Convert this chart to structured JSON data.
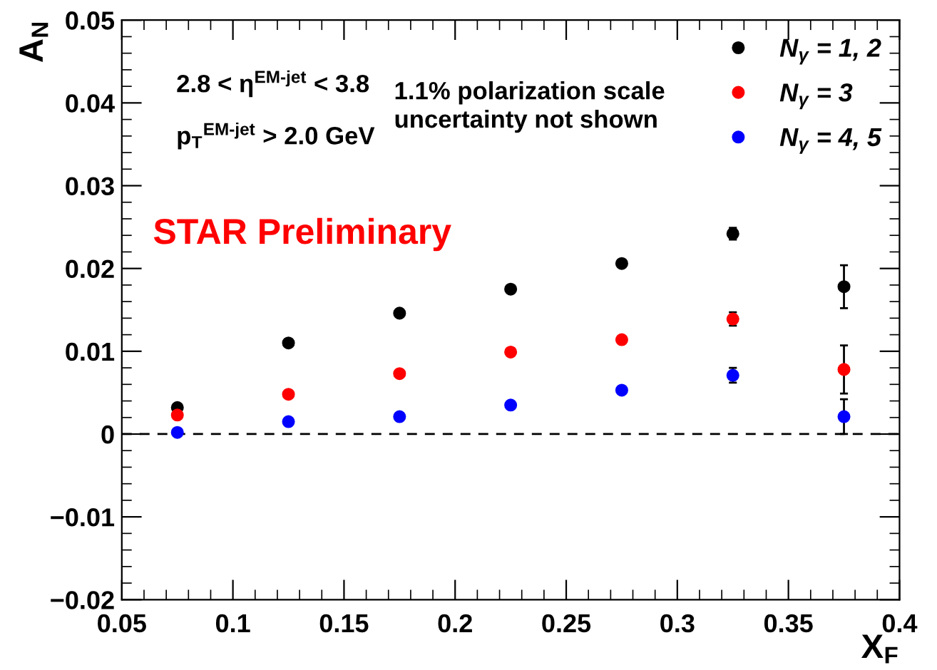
{
  "chart_data": {
    "type": "scatter",
    "xlabel": "X$_{F}$",
    "ylabel": "A$_{N}$",
    "x": [
      0.075,
      0.125,
      0.175,
      0.225,
      0.275,
      0.325,
      0.375
    ],
    "series": [
      {
        "name": "N$_{γ}$ = 1, 2",
        "color": "#000000",
        "values": [
          0.0032,
          0.011,
          0.0146,
          0.0175,
          0.0206,
          0.0242,
          0.0178
        ],
        "errors": [
          null,
          null,
          null,
          null,
          null,
          0.0007,
          0.0026
        ]
      },
      {
        "name": "N$_{γ}$ = 3",
        "color": "#ff0000",
        "values": [
          0.0023,
          0.0048,
          0.0073,
          0.0099,
          0.0114,
          0.0139,
          0.0078
        ],
        "errors": [
          null,
          null,
          null,
          null,
          null,
          0.0008,
          0.0029
        ]
      },
      {
        "name": "N$_{γ}$ = 4, 5",
        "color": "#0000ff",
        "values": [
          0.0002,
          0.0015,
          0.0021,
          0.0035,
          0.0053,
          0.0071,
          0.0021
        ],
        "errors": [
          null,
          null,
          null,
          null,
          null,
          0.0009,
          0.0021
        ]
      }
    ],
    "xlim": [
      0.05,
      0.4
    ],
    "xticks": [
      0.05,
      0.1,
      0.15,
      0.2,
      0.25,
      0.3,
      0.35,
      0.4
    ],
    "ylim": [
      -0.02,
      0.05
    ],
    "yticks": [
      -0.02,
      -0.01,
      0,
      0.01,
      0.02,
      0.03,
      0.04,
      0.05
    ],
    "ref_lines": [
      {
        "axis": "y",
        "value": 0,
        "color": "#000000",
        "line_style": "dashed"
      }
    ],
    "annotations": [
      "2.8 < η$^{EM-jet}$ < 3.8",
      "p$_{T}$$^{EM-jet}$ > 2.0 GeV",
      "1.1% polarization scale\nuncertainty not shown",
      "STAR Preliminary"
    ],
    "legend": "top right",
    "marker": "circle",
    "grid": false
  }
}
